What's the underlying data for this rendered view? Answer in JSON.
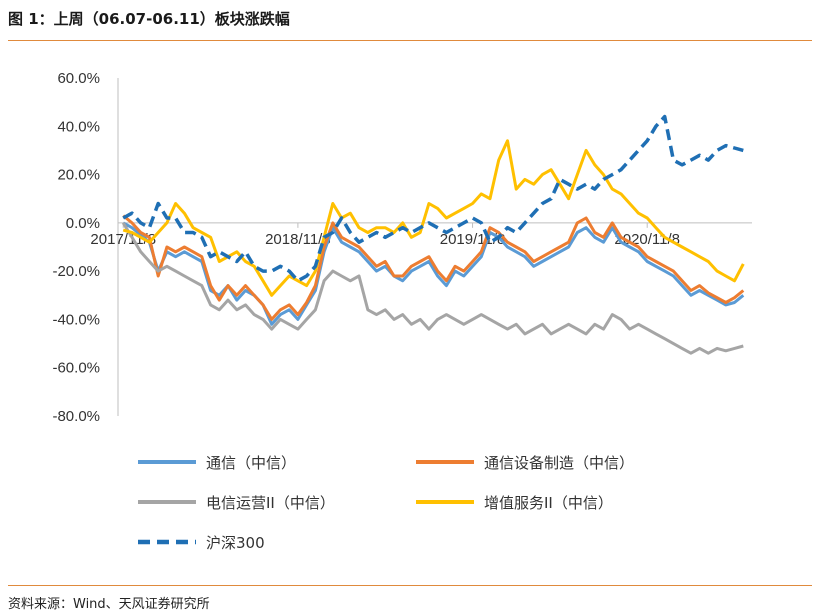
{
  "header": {
    "title": "图 1：上周（06.07-06.11）板块涨跌幅"
  },
  "footer": {
    "source": "资料来源：Wind、天风证券研究所"
  },
  "chart_data": {
    "type": "line",
    "xlabel": "",
    "ylabel": "",
    "ylim": [
      -0.8,
      0.6
    ],
    "yticks": [
      "60.0%",
      "40.0%",
      "20.0%",
      "0.0%",
      "-20.0%",
      "-40.0%",
      "-60.0%",
      "-80.0%"
    ],
    "yticks_values": [
      0.6,
      0.4,
      0.2,
      0.0,
      -0.2,
      -0.4,
      -0.6,
      -0.8
    ],
    "xticks": [
      "2017/11/8",
      "2018/11/8",
      "2019/11/8",
      "2020/11/8"
    ],
    "xticks_values": [
      0.0,
      1.0,
      2.0,
      3.0
    ],
    "xlim": [
      -0.03,
      3.6
    ],
    "legend": "bottom",
    "series": [
      {
        "name": "通信（中信）",
        "color": "#5b9bd5",
        "dash": "solid",
        "x": [
          0,
          0.05,
          0.1,
          0.15,
          0.2,
          0.25,
          0.3,
          0.35,
          0.4,
          0.45,
          0.5,
          0.55,
          0.6,
          0.65,
          0.7,
          0.75,
          0.8,
          0.85,
          0.9,
          0.95,
          1.0,
          1.05,
          1.1,
          1.15,
          1.2,
          1.25,
          1.3,
          1.35,
          1.4,
          1.45,
          1.5,
          1.55,
          1.6,
          1.65,
          1.7,
          1.75,
          1.8,
          1.85,
          1.9,
          1.95,
          2.0,
          2.05,
          2.1,
          2.15,
          2.2,
          2.25,
          2.3,
          2.35,
          2.4,
          2.45,
          2.5,
          2.55,
          2.6,
          2.65,
          2.7,
          2.75,
          2.8,
          2.85,
          2.9,
          2.95,
          3.0,
          3.05,
          3.1,
          3.15,
          3.2,
          3.25,
          3.3,
          3.35,
          3.4,
          3.45,
          3.5,
          3.55
        ],
        "y": [
          0.0,
          -0.02,
          -0.05,
          -0.08,
          -0.2,
          -0.12,
          -0.14,
          -0.12,
          -0.14,
          -0.16,
          -0.28,
          -0.3,
          -0.26,
          -0.32,
          -0.28,
          -0.3,
          -0.34,
          -0.42,
          -0.38,
          -0.36,
          -0.4,
          -0.34,
          -0.28,
          -0.12,
          -0.02,
          -0.08,
          -0.1,
          -0.12,
          -0.16,
          -0.2,
          -0.18,
          -0.22,
          -0.24,
          -0.2,
          -0.18,
          -0.16,
          -0.22,
          -0.26,
          -0.2,
          -0.22,
          -0.18,
          -0.14,
          -0.04,
          -0.06,
          -0.1,
          -0.12,
          -0.14,
          -0.18,
          -0.16,
          -0.14,
          -0.12,
          -0.1,
          -0.04,
          -0.02,
          -0.06,
          -0.08,
          -0.02,
          -0.08,
          -0.1,
          -0.12,
          -0.16,
          -0.18,
          -0.2,
          -0.22,
          -0.26,
          -0.3,
          -0.28,
          -0.3,
          -0.32,
          -0.34,
          -0.33,
          -0.3
        ]
      },
      {
        "name": "通信设备制造（中信）",
        "color": "#ed7d31",
        "dash": "solid",
        "x": [
          0,
          0.05,
          0.1,
          0.15,
          0.2,
          0.25,
          0.3,
          0.35,
          0.4,
          0.45,
          0.5,
          0.55,
          0.6,
          0.65,
          0.7,
          0.75,
          0.8,
          0.85,
          0.9,
          0.95,
          1.0,
          1.05,
          1.1,
          1.15,
          1.2,
          1.25,
          1.3,
          1.35,
          1.4,
          1.45,
          1.5,
          1.55,
          1.6,
          1.65,
          1.7,
          1.75,
          1.8,
          1.85,
          1.9,
          1.95,
          2.0,
          2.05,
          2.1,
          2.15,
          2.2,
          2.25,
          2.3,
          2.35,
          2.4,
          2.45,
          2.5,
          2.55,
          2.6,
          2.65,
          2.7,
          2.75,
          2.8,
          2.85,
          2.9,
          2.95,
          3.0,
          3.05,
          3.1,
          3.15,
          3.2,
          3.25,
          3.3,
          3.35,
          3.4,
          3.45,
          3.5,
          3.55
        ],
        "y": [
          0.03,
          0.0,
          -0.04,
          -0.06,
          -0.22,
          -0.1,
          -0.12,
          -0.1,
          -0.12,
          -0.14,
          -0.26,
          -0.32,
          -0.26,
          -0.3,
          -0.26,
          -0.3,
          -0.34,
          -0.4,
          -0.36,
          -0.34,
          -0.38,
          -0.33,
          -0.26,
          -0.1,
          0.0,
          -0.06,
          -0.08,
          -0.1,
          -0.14,
          -0.18,
          -0.16,
          -0.22,
          -0.22,
          -0.18,
          -0.16,
          -0.14,
          -0.2,
          -0.24,
          -0.18,
          -0.2,
          -0.16,
          -0.12,
          -0.02,
          -0.04,
          -0.08,
          -0.1,
          -0.12,
          -0.16,
          -0.14,
          -0.12,
          -0.1,
          -0.08,
          0.0,
          0.02,
          -0.04,
          -0.06,
          0.0,
          -0.06,
          -0.08,
          -0.1,
          -0.14,
          -0.16,
          -0.18,
          -0.2,
          -0.24,
          -0.28,
          -0.26,
          -0.29,
          -0.31,
          -0.33,
          -0.31,
          -0.28
        ]
      },
      {
        "name": "电信运营II（中信）",
        "color": "#a5a5a5",
        "dash": "solid",
        "x": [
          0,
          0.05,
          0.1,
          0.15,
          0.2,
          0.25,
          0.3,
          0.35,
          0.4,
          0.45,
          0.5,
          0.55,
          0.6,
          0.65,
          0.7,
          0.75,
          0.8,
          0.85,
          0.9,
          0.95,
          1.0,
          1.05,
          1.1,
          1.15,
          1.2,
          1.25,
          1.3,
          1.35,
          1.4,
          1.45,
          1.5,
          1.55,
          1.6,
          1.65,
          1.7,
          1.75,
          1.8,
          1.85,
          1.9,
          1.95,
          2.0,
          2.05,
          2.1,
          2.15,
          2.2,
          2.25,
          2.3,
          2.35,
          2.4,
          2.45,
          2.5,
          2.55,
          2.6,
          2.65,
          2.7,
          2.75,
          2.8,
          2.85,
          2.9,
          2.95,
          3.0,
          3.05,
          3.1,
          3.15,
          3.2,
          3.25,
          3.3,
          3.35,
          3.4,
          3.45,
          3.5,
          3.55
        ],
        "y": [
          0.0,
          -0.06,
          -0.12,
          -0.16,
          -0.2,
          -0.18,
          -0.2,
          -0.22,
          -0.24,
          -0.26,
          -0.34,
          -0.36,
          -0.32,
          -0.36,
          -0.34,
          -0.38,
          -0.4,
          -0.44,
          -0.4,
          -0.42,
          -0.44,
          -0.4,
          -0.36,
          -0.24,
          -0.2,
          -0.22,
          -0.24,
          -0.22,
          -0.36,
          -0.38,
          -0.36,
          -0.4,
          -0.38,
          -0.42,
          -0.4,
          -0.44,
          -0.4,
          -0.38,
          -0.4,
          -0.42,
          -0.4,
          -0.38,
          -0.4,
          -0.42,
          -0.44,
          -0.42,
          -0.46,
          -0.44,
          -0.42,
          -0.46,
          -0.44,
          -0.42,
          -0.44,
          -0.46,
          -0.42,
          -0.44,
          -0.38,
          -0.4,
          -0.44,
          -0.42,
          -0.44,
          -0.46,
          -0.48,
          -0.5,
          -0.52,
          -0.54,
          -0.52,
          -0.54,
          -0.52,
          -0.53,
          -0.52,
          -0.51
        ]
      },
      {
        "name": "增值服务II（中信）",
        "color": "#ffc000",
        "dash": "solid",
        "x": [
          0,
          0.05,
          0.1,
          0.15,
          0.2,
          0.25,
          0.3,
          0.35,
          0.4,
          0.45,
          0.5,
          0.55,
          0.6,
          0.65,
          0.7,
          0.75,
          0.8,
          0.85,
          0.9,
          0.95,
          1.0,
          1.05,
          1.1,
          1.15,
          1.2,
          1.25,
          1.3,
          1.35,
          1.4,
          1.45,
          1.5,
          1.55,
          1.6,
          1.65,
          1.7,
          1.75,
          1.8,
          1.85,
          1.9,
          1.95,
          2.0,
          2.05,
          2.1,
          2.15,
          2.2,
          2.25,
          2.3,
          2.35,
          2.4,
          2.45,
          2.5,
          2.55,
          2.6,
          2.65,
          2.7,
          2.75,
          2.8,
          2.85,
          2.9,
          2.95,
          3.0,
          3.05,
          3.1,
          3.15,
          3.2,
          3.25,
          3.3,
          3.35,
          3.4,
          3.45,
          3.5,
          3.55
        ],
        "y": [
          -0.03,
          -0.04,
          -0.06,
          -0.08,
          -0.04,
          0.0,
          0.08,
          0.04,
          -0.02,
          -0.04,
          -0.06,
          -0.16,
          -0.14,
          -0.12,
          -0.16,
          -0.18,
          -0.24,
          -0.3,
          -0.26,
          -0.22,
          -0.24,
          -0.26,
          -0.2,
          -0.06,
          0.08,
          0.02,
          0.04,
          -0.02,
          -0.04,
          -0.02,
          -0.02,
          -0.04,
          0.0,
          -0.06,
          -0.04,
          0.08,
          0.06,
          0.02,
          0.04,
          0.06,
          0.08,
          0.12,
          0.1,
          0.26,
          0.34,
          0.14,
          0.18,
          0.16,
          0.2,
          0.22,
          0.16,
          0.1,
          0.2,
          0.3,
          0.24,
          0.2,
          0.14,
          0.12,
          0.08,
          0.04,
          0.02,
          -0.02,
          -0.06,
          -0.08,
          -0.1,
          -0.12,
          -0.14,
          -0.16,
          -0.2,
          -0.22,
          -0.24,
          -0.17
        ]
      },
      {
        "name": "沪深300",
        "color": "#1f6fb4",
        "dash": "dashed",
        "x": [
          0,
          0.05,
          0.1,
          0.15,
          0.2,
          0.25,
          0.3,
          0.35,
          0.4,
          0.45,
          0.5,
          0.55,
          0.6,
          0.65,
          0.7,
          0.75,
          0.8,
          0.85,
          0.9,
          0.95,
          1.0,
          1.05,
          1.1,
          1.15,
          1.2,
          1.25,
          1.3,
          1.35,
          1.4,
          1.45,
          1.5,
          1.55,
          1.6,
          1.65,
          1.7,
          1.75,
          1.8,
          1.85,
          1.9,
          1.95,
          2.0,
          2.05,
          2.1,
          2.15,
          2.2,
          2.25,
          2.3,
          2.35,
          2.4,
          2.45,
          2.5,
          2.55,
          2.6,
          2.65,
          2.7,
          2.75,
          2.8,
          2.85,
          2.9,
          2.95,
          3.0,
          3.05,
          3.1,
          3.15,
          3.2,
          3.25,
          3.3,
          3.35,
          3.4,
          3.45,
          3.5,
          3.55
        ],
        "y": [
          0.02,
          0.04,
          0.0,
          -0.02,
          0.08,
          0.02,
          0.02,
          -0.04,
          -0.04,
          -0.06,
          -0.14,
          -0.12,
          -0.14,
          -0.16,
          -0.12,
          -0.18,
          -0.2,
          -0.2,
          -0.18,
          -0.2,
          -0.24,
          -0.22,
          -0.18,
          -0.06,
          -0.04,
          0.02,
          -0.04,
          -0.08,
          -0.06,
          -0.04,
          -0.06,
          -0.04,
          -0.02,
          -0.04,
          -0.02,
          0.0,
          -0.02,
          -0.04,
          -0.02,
          0.0,
          0.02,
          0.0,
          -0.08,
          -0.06,
          -0.02,
          -0.04,
          0.0,
          0.04,
          0.08,
          0.1,
          0.18,
          0.16,
          0.14,
          0.16,
          0.14,
          0.18,
          0.2,
          0.22,
          0.26,
          0.3,
          0.34,
          0.4,
          0.44,
          0.26,
          0.24,
          0.26,
          0.28,
          0.26,
          0.3,
          0.32,
          0.31,
          0.3
        ]
      }
    ]
  }
}
